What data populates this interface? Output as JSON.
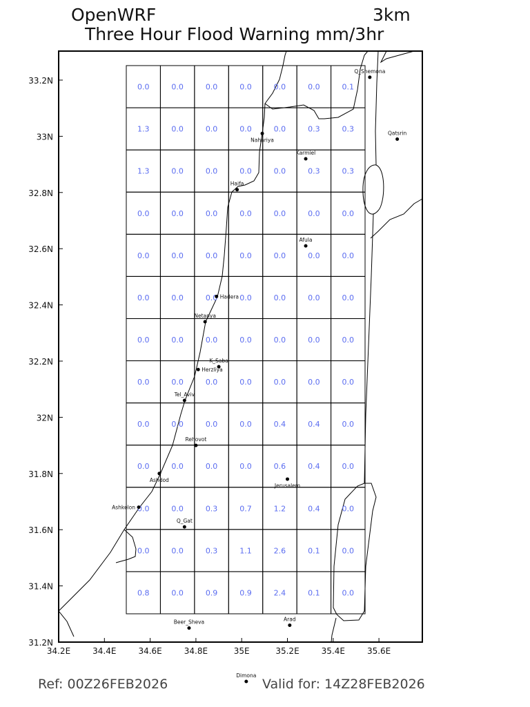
{
  "header": {
    "model": "OpenWRF",
    "resolution": "3km",
    "title": "Three Hour Flood Warning mm/3hr"
  },
  "footer": {
    "ref": "Ref: 00Z26FEB2026",
    "valid": "Valid for: 14Z28FEB2026"
  },
  "colors": {
    "values": "#5a6cf0",
    "grid": "#000000",
    "coast": "#000000"
  },
  "axes": {
    "lon_labels": [
      "34.2E",
      "34.4E",
      "34.6E",
      "34.8E",
      "35E",
      "35.2E",
      "35.4E",
      "35.6E"
    ],
    "lon_values": [
      34.2,
      34.4,
      34.6,
      34.8,
      35.0,
      35.2,
      35.4,
      35.6
    ],
    "lat_labels": [
      "33.2N",
      "33N",
      "32.8N",
      "32.6N",
      "32.4N",
      "32.2N",
      "32N",
      "31.8N",
      "31.6N",
      "31.4N",
      "31.2N"
    ],
    "lat_values": [
      33.2,
      33.0,
      32.8,
      32.6,
      32.4,
      32.2,
      32.0,
      31.8,
      31.6,
      31.4,
      31.2
    ]
  },
  "grid_values": [
    [
      "0.0",
      "0.0",
      "0.0",
      "0.0",
      "0.0",
      "0.0",
      "0.1"
    ],
    [
      "1.3",
      "0.0",
      "0.0",
      "0.0",
      "0.0",
      "0.3",
      "0.3"
    ],
    [
      "1.3",
      "0.0",
      "0.0",
      "0.0",
      "0.0",
      "0.3",
      "0.3"
    ],
    [
      "0.0",
      "0.0",
      "0.0",
      "0.0",
      "0.0",
      "0.0",
      "0.0"
    ],
    [
      "0.0",
      "0.0",
      "0.0",
      "0.0",
      "0.0",
      "0.0",
      "0.0"
    ],
    [
      "0.0",
      "0.0",
      "0.0",
      "0.0",
      "0.0",
      "0.0",
      "0.0"
    ],
    [
      "0.0",
      "0.0",
      "0.0",
      "0.0",
      "0.0",
      "0.0",
      "0.0"
    ],
    [
      "0.0",
      "0.0",
      "0.0",
      "0.0",
      "0.0",
      "0.0",
      "0.0"
    ],
    [
      "0.0",
      "0.0",
      "0.0",
      "0.0",
      "0.4",
      "0.4",
      "0.0"
    ],
    [
      "0.0",
      "0.0",
      "0.0",
      "0.0",
      "0.6",
      "0.4",
      "0.0"
    ],
    [
      "0.0",
      "0.0",
      "0.3",
      "0.7",
      "1.2",
      "0.4",
      "0.0"
    ],
    [
      "0.0",
      "0.0",
      "0.3",
      "1.1",
      "2.6",
      "0.1",
      "0.0"
    ],
    [
      "0.8",
      "0.0",
      "0.9",
      "0.9",
      "2.4",
      "0.1",
      "0.0"
    ]
  ],
  "cities": [
    {
      "name": "Q_Shemona",
      "lon": 35.56,
      "lat": 33.21
    },
    {
      "name": "Qatsrin",
      "lon": 35.68,
      "lat": 32.99
    },
    {
      "name": "Nahariya",
      "lon": 35.09,
      "lat": 33.01
    },
    {
      "name": "Karmiel",
      "lon": 35.28,
      "lat": 32.92
    },
    {
      "name": "Haifa",
      "lon": 34.98,
      "lat": 32.81
    },
    {
      "name": "Afula",
      "lon": 35.28,
      "lat": 32.61
    },
    {
      "name": "Hadera",
      "lon": 34.89,
      "lat": 32.43
    },
    {
      "name": "Netanya",
      "lon": 34.84,
      "lat": 32.34
    },
    {
      "name": "K_Saba",
      "lon": 34.9,
      "lat": 32.18
    },
    {
      "name": "Herzliya",
      "lon": 34.81,
      "lat": 32.17
    },
    {
      "name": "Tel_Aviv",
      "lon": 34.75,
      "lat": 32.06
    },
    {
      "name": "Rehovot",
      "lon": 34.8,
      "lat": 31.9
    },
    {
      "name": "Ashdod",
      "lon": 34.64,
      "lat": 31.8
    },
    {
      "name": "Jerusalem",
      "lon": 35.2,
      "lat": 31.78
    },
    {
      "name": "Ashkelon",
      "lon": 34.55,
      "lat": 31.68
    },
    {
      "name": "Q_Gat",
      "lon": 34.75,
      "lat": 31.61
    },
    {
      "name": "Beer_Sheva",
      "lon": 34.77,
      "lat": 31.25
    },
    {
      "name": "Arad",
      "lon": 35.21,
      "lat": 31.26
    },
    {
      "name": "Dimona",
      "lon": 35.02,
      "lat": 31.06
    }
  ]
}
